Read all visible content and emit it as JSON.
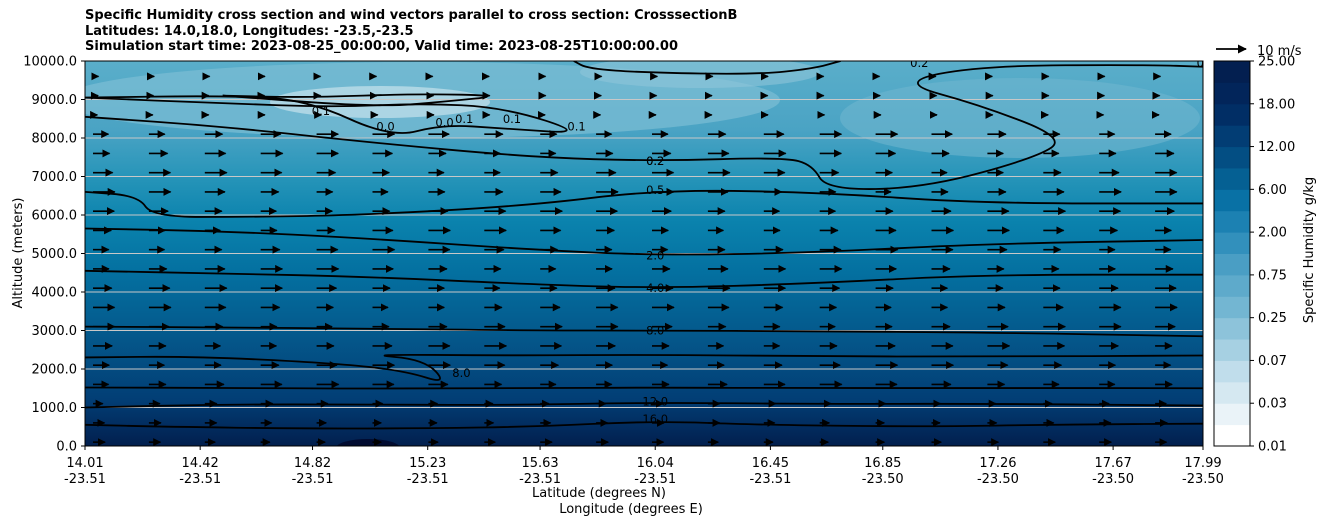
{
  "title_lines": [
    "Specific Humidity cross section and wind vectors parallel to cross section: CrosssectionB",
    "Latitudes: 14.0,18.0, Longitudes: -23.5,-23.5",
    "Simulation start time: 2023-08-25_00:00:00, Valid time: 2023-08-25T10:00:00.00"
  ],
  "chart_data": {
    "type": "heatmap",
    "subtype": "filled contour cross section with contour lines and wind vectors",
    "ylabel": "Altitude (meters)",
    "xlabel_lines": [
      "Latitude (degrees N)",
      "Longitude (degrees E)"
    ],
    "ylim": [
      0,
      10000
    ],
    "y_ticks": [
      "0.0",
      "1000.0",
      "2000.0",
      "3000.0",
      "4000.0",
      "5000.0",
      "6000.0",
      "7000.0",
      "8000.0",
      "9000.0",
      "10000.0"
    ],
    "x_ticks": [
      {
        "lat": "14.01",
        "lon": "-23.51"
      },
      {
        "lat": "14.42",
        "lon": "-23.51"
      },
      {
        "lat": "14.82",
        "lon": "-23.51"
      },
      {
        "lat": "15.23",
        "lon": "-23.51"
      },
      {
        "lat": "15.63",
        "lon": "-23.51"
      },
      {
        "lat": "16.04",
        "lon": "-23.51"
      },
      {
        "lat": "16.45",
        "lon": "-23.51"
      },
      {
        "lat": "16.85",
        "lon": "-23.50"
      },
      {
        "lat": "17.26",
        "lon": "-23.50"
      },
      {
        "lat": "17.67",
        "lon": "-23.50"
      },
      {
        "lat": "17.99",
        "lon": "-23.50"
      }
    ],
    "grid": "horizontal lines at y ticks",
    "colorbar": {
      "label": "Specific Humidity g/kg",
      "tick_labels": [
        "0.01",
        "0.03",
        "0.07",
        "0.25",
        "0.75",
        "2.00",
        "6.00",
        "12.00",
        "18.00",
        "25.00"
      ],
      "levels": [
        0.01,
        0.02,
        0.03,
        0.05,
        0.07,
        0.1,
        0.25,
        0.5,
        0.75,
        1.0,
        2.0,
        4.0,
        6.0,
        8.0,
        12.0,
        15.0,
        18.0,
        22.0,
        25.0
      ],
      "colormap": "white to dark navy blue (PuBu-like)"
    },
    "contour_labels": [
      {
        "text": "0.2",
        "lat": 16.04,
        "alt": 7400
      },
      {
        "text": "0.2",
        "lat": 16.04,
        "alt": 7400
      },
      {
        "text": "0.5",
        "lat": 16.04,
        "alt": 6650
      },
      {
        "text": "2.0",
        "lat": 16.04,
        "alt": 4950
      },
      {
        "text": "4.0",
        "lat": 16.04,
        "alt": 4100
      },
      {
        "text": "8.0",
        "lat": 16.04,
        "alt": 3000
      },
      {
        "text": "12.0",
        "lat": 16.04,
        "alt": 1150
      },
      {
        "text": "16.0",
        "lat": 16.04,
        "alt": 700
      },
      {
        "text": "0.1",
        "lat": 15.36,
        "alt": 8500
      },
      {
        "text": "0.1",
        "lat": 15.53,
        "alt": 8500
      },
      {
        "text": "0.0",
        "lat": 15.29,
        "alt": 8400
      },
      {
        "text": "0.0",
        "lat": 15.08,
        "alt": 8300
      },
      {
        "text": "0.1",
        "lat": 14.85,
        "alt": 8700
      },
      {
        "text": "0.1",
        "lat": 15.76,
        "alt": 8300
      },
      {
        "text": "0.2",
        "lat": 16.98,
        "alt": 9950
      },
      {
        "text": "0.2",
        "lat": 18.0,
        "alt": 9950
      },
      {
        "text": "8.0",
        "lat": 15.35,
        "alt": 1900
      }
    ],
    "contour_lines": [
      {
        "level": "16.0",
        "points": [
          [
            14.01,
            550
          ],
          [
            14.3,
            500
          ],
          [
            14.8,
            450
          ],
          [
            15.23,
            460
          ],
          [
            15.6,
            500
          ],
          [
            16.04,
            650
          ],
          [
            16.4,
            550
          ],
          [
            17.0,
            500
          ],
          [
            17.5,
            560
          ],
          [
            17.99,
            580
          ]
        ]
      },
      {
        "level": "12.0",
        "points": [
          [
            14.01,
            1000
          ],
          [
            14.5,
            1080
          ],
          [
            15.0,
            1080
          ],
          [
            15.5,
            1060
          ],
          [
            16.04,
            1130
          ],
          [
            16.6,
            1090
          ],
          [
            17.2,
            1100
          ],
          [
            17.99,
            1050
          ]
        ]
      },
      {
        "level": "8.0",
        "points": [
          [
            14.01,
            1520
          ],
          [
            14.5,
            1510
          ],
          [
            15.0,
            1490
          ],
          [
            15.23,
            1500
          ],
          [
            15.6,
            1500
          ],
          [
            16.04,
            1520
          ],
          [
            16.6,
            1500
          ],
          [
            17.2,
            1510
          ],
          [
            17.99,
            1500
          ]
        ]
      },
      {
        "level": "8.0b",
        "points": [
          [
            14.01,
            2300
          ],
          [
            14.4,
            2330
          ],
          [
            14.9,
            2150
          ],
          [
            15.15,
            1950
          ],
          [
            15.3,
            1600
          ],
          [
            15.22,
            2250
          ],
          [
            15.0,
            2380
          ],
          [
            15.5,
            2350
          ],
          [
            16.04,
            2370
          ],
          [
            16.6,
            2330
          ],
          [
            17.2,
            2320
          ],
          [
            17.99,
            2350
          ]
        ]
      },
      {
        "level": "8.0c",
        "points": [
          [
            14.01,
            3100
          ],
          [
            14.5,
            3080
          ],
          [
            15.0,
            3050
          ],
          [
            15.6,
            3000
          ],
          [
            16.04,
            3000
          ],
          [
            16.6,
            2980
          ],
          [
            17.2,
            2950
          ],
          [
            17.99,
            2850
          ]
        ]
      },
      {
        "level": "4.0",
        "points": [
          [
            14.01,
            4550
          ],
          [
            14.5,
            4480
          ],
          [
            15.0,
            4400
          ],
          [
            15.6,
            4200
          ],
          [
            16.04,
            4100
          ],
          [
            16.6,
            4220
          ],
          [
            17.2,
            4450
          ],
          [
            17.99,
            4450
          ]
        ]
      },
      {
        "level": "2.0",
        "points": [
          [
            14.01,
            5650
          ],
          [
            14.5,
            5580
          ],
          [
            15.0,
            5400
          ],
          [
            15.6,
            5100
          ],
          [
            16.04,
            4950
          ],
          [
            16.6,
            5020
          ],
          [
            17.2,
            5250
          ],
          [
            17.99,
            5350
          ]
        ]
      },
      {
        "level": "0.5",
        "points": [
          [
            14.01,
            6600
          ],
          [
            14.2,
            6500
          ],
          [
            14.25,
            5950
          ],
          [
            14.6,
            5950
          ],
          [
            15.0,
            6000
          ],
          [
            15.6,
            6250
          ],
          [
            16.04,
            6650
          ],
          [
            16.6,
            6600
          ],
          [
            17.2,
            6300
          ],
          [
            17.99,
            6300
          ]
        ]
      },
      {
        "level": "0.2",
        "points": [
          [
            14.01,
            8550
          ],
          [
            14.5,
            8300
          ],
          [
            15.0,
            7900
          ],
          [
            15.6,
            7500
          ],
          [
            16.04,
            7400
          ],
          [
            16.5,
            7500
          ],
          [
            16.6,
            7300
          ],
          [
            16.65,
            6650
          ],
          [
            17.0,
            6700
          ],
          [
            17.4,
            7500
          ],
          [
            17.5,
            8000
          ],
          [
            17.2,
            8850
          ],
          [
            16.9,
            9450
          ],
          [
            17.2,
            9880
          ],
          [
            17.8,
            9900
          ],
          [
            17.99,
            9850
          ]
        ]
      },
      {
        "level": "0.1",
        "points": [
          [
            14.01,
            9050
          ],
          [
            14.5,
            8900
          ],
          [
            14.9,
            8800
          ],
          [
            15.2,
            8900
          ],
          [
            15.5,
            8800
          ],
          [
            15.8,
            8100
          ],
          [
            15.5,
            8250
          ],
          [
            15.28,
            8350
          ],
          [
            15.1,
            8000
          ],
          [
            14.8,
            9000
          ],
          [
            14.5,
            9100
          ],
          [
            14.01,
            9050
          ]
        ]
      },
      {
        "level": "0.1b",
        "points": [
          [
            14.5,
            9100
          ],
          [
            14.8,
            9050
          ],
          [
            15.2,
            9150
          ],
          [
            15.5,
            9100
          ],
          [
            15.3,
            8950
          ],
          [
            15.05,
            8800
          ],
          [
            14.5,
            9100
          ]
        ]
      },
      {
        "level": "0.2top",
        "points": [
          [
            15.75,
            10000
          ],
          [
            15.8,
            9800
          ],
          [
            16.0,
            9700
          ],
          [
            16.4,
            9650
          ],
          [
            16.6,
            9800
          ],
          [
            16.7,
            10000
          ]
        ]
      }
    ],
    "wind_vectors": {
      "reference": "10 m/s",
      "direction": "parallel to cross section, pointing north (right)",
      "reference_speed": 10
    }
  }
}
